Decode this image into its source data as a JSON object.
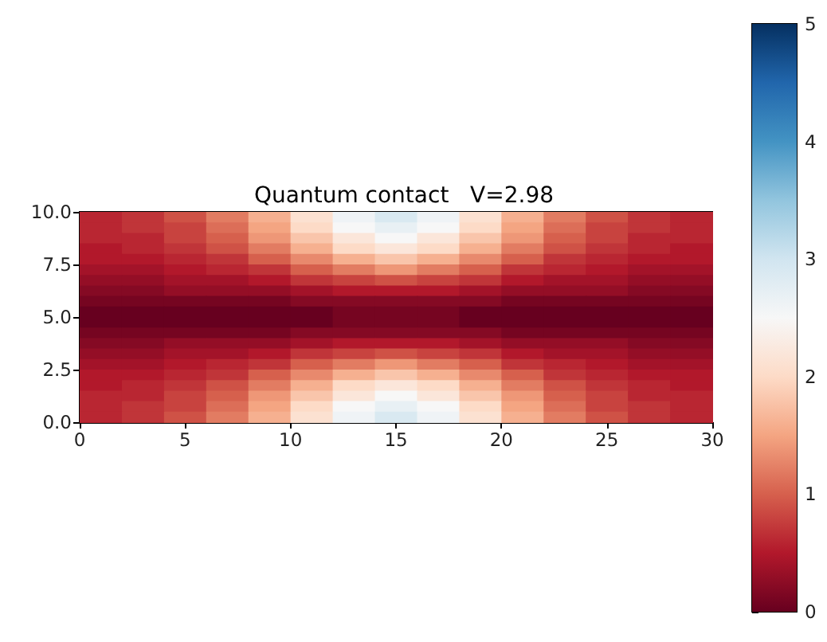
{
  "chart_data": {
    "type": "heatmap",
    "title": "Quantum contact   V=2.98",
    "cells": [
      [
        0.6,
        0.7,
        0.9,
        1.2,
        1.6,
        2.1,
        2.6,
        2.9,
        2.6,
        2.1,
        1.6,
        1.2,
        0.9,
        0.7,
        0.6
      ],
      [
        0.6,
        0.7,
        0.8,
        1.1,
        1.5,
        2.0,
        2.5,
        2.7,
        2.5,
        2.0,
        1.5,
        1.1,
        0.8,
        0.7,
        0.6
      ],
      [
        0.6,
        0.6,
        0.8,
        1.0,
        1.4,
        1.8,
        2.2,
        2.5,
        2.2,
        1.8,
        1.4,
        1.0,
        0.8,
        0.6,
        0.6
      ],
      [
        0.5,
        0.6,
        0.7,
        0.9,
        1.2,
        1.6,
        2.0,
        2.2,
        2.0,
        1.6,
        1.2,
        0.9,
        0.7,
        0.6,
        0.5
      ],
      [
        0.5,
        0.5,
        0.6,
        0.7,
        1.0,
        1.3,
        1.6,
        1.8,
        1.6,
        1.3,
        1.0,
        0.7,
        0.6,
        0.5,
        0.5
      ],
      [
        0.4,
        0.4,
        0.5,
        0.6,
        0.7,
        1.0,
        1.2,
        1.4,
        1.2,
        1.0,
        0.7,
        0.6,
        0.5,
        0.4,
        0.4
      ],
      [
        0.3,
        0.3,
        0.4,
        0.4,
        0.5,
        0.7,
        0.8,
        0.9,
        0.8,
        0.7,
        0.5,
        0.4,
        0.4,
        0.3,
        0.3
      ],
      [
        0.2,
        0.2,
        0.3,
        0.3,
        0.3,
        0.4,
        0.5,
        0.5,
        0.5,
        0.4,
        0.3,
        0.3,
        0.3,
        0.2,
        0.2
      ],
      [
        0.1,
        0.1,
        0.1,
        0.1,
        0.1,
        0.2,
        0.2,
        0.2,
        0.2,
        0.2,
        0.1,
        0.1,
        0.1,
        0.1,
        0.1
      ],
      [
        0.0,
        0.0,
        0.0,
        0.0,
        0.0,
        0.0,
        0.1,
        0.1,
        0.1,
        0.0,
        0.0,
        0.0,
        0.0,
        0.0,
        0.0
      ],
      [
        0.0,
        0.0,
        0.0,
        0.0,
        0.0,
        0.0,
        0.1,
        0.1,
        0.1,
        0.0,
        0.0,
        0.0,
        0.0,
        0.0,
        0.0
      ],
      [
        0.1,
        0.1,
        0.1,
        0.1,
        0.1,
        0.2,
        0.2,
        0.2,
        0.2,
        0.2,
        0.1,
        0.1,
        0.1,
        0.1,
        0.1
      ],
      [
        0.2,
        0.2,
        0.3,
        0.3,
        0.3,
        0.4,
        0.5,
        0.5,
        0.5,
        0.4,
        0.3,
        0.3,
        0.3,
        0.2,
        0.2
      ],
      [
        0.3,
        0.3,
        0.4,
        0.4,
        0.5,
        0.7,
        0.8,
        0.9,
        0.8,
        0.7,
        0.5,
        0.4,
        0.4,
        0.3,
        0.3
      ],
      [
        0.4,
        0.4,
        0.5,
        0.6,
        0.7,
        1.0,
        1.2,
        1.4,
        1.2,
        1.0,
        0.7,
        0.6,
        0.5,
        0.4,
        0.4
      ],
      [
        0.5,
        0.5,
        0.6,
        0.7,
        1.0,
        1.3,
        1.6,
        1.8,
        1.6,
        1.3,
        1.0,
        0.7,
        0.6,
        0.5,
        0.5
      ],
      [
        0.5,
        0.6,
        0.7,
        0.9,
        1.2,
        1.6,
        2.0,
        2.2,
        2.0,
        1.6,
        1.2,
        0.9,
        0.7,
        0.6,
        0.5
      ],
      [
        0.6,
        0.6,
        0.8,
        1.0,
        1.4,
        1.8,
        2.2,
        2.5,
        2.2,
        1.8,
        1.4,
        1.0,
        0.8,
        0.6,
        0.6
      ],
      [
        0.6,
        0.7,
        0.8,
        1.1,
        1.5,
        2.0,
        2.5,
        2.7,
        2.5,
        2.0,
        1.5,
        1.1,
        0.8,
        0.7,
        0.6
      ],
      [
        0.6,
        0.7,
        0.9,
        1.2,
        1.6,
        2.1,
        2.6,
        2.9,
        2.6,
        2.1,
        1.6,
        1.2,
        0.9,
        0.7,
        0.6
      ]
    ],
    "xlim": [
      0,
      30
    ],
    "ylim": [
      0,
      10
    ],
    "xticks": [
      0,
      5,
      10,
      15,
      20,
      25,
      30
    ],
    "yticks": [
      {
        "value": 0,
        "label": "0.0"
      },
      {
        "value": 2.5,
        "label": "2.5"
      },
      {
        "value": 5,
        "label": "5.0"
      },
      {
        "value": 7.5,
        "label": "7.5"
      },
      {
        "value": 10,
        "label": "10.0"
      }
    ],
    "clim": [
      0,
      5
    ],
    "cticks": [
      0,
      1,
      2,
      3,
      4,
      5
    ]
  }
}
